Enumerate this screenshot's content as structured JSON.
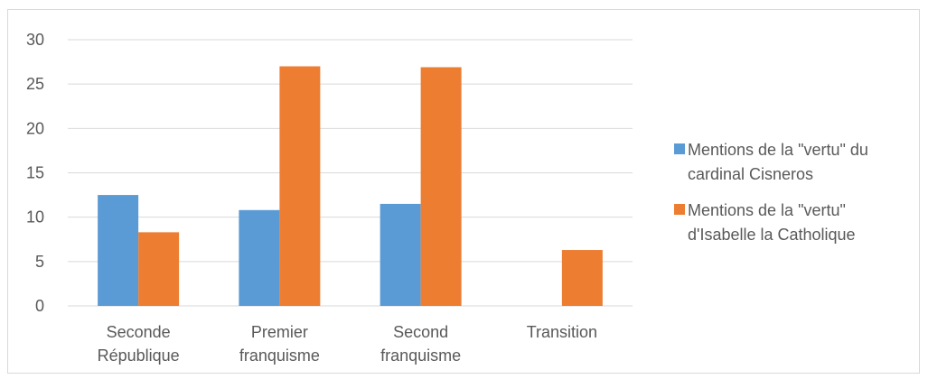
{
  "chart_data": {
    "type": "bar",
    "categories": [
      [
        "Seconde",
        "République"
      ],
      [
        "Premier",
        "franquisme"
      ],
      [
        "Second",
        "franquisme"
      ],
      [
        "Transition"
      ]
    ],
    "series": [
      {
        "name": "Mentions de la \"vertu\" du cardinal Cisneros",
        "legend_lines": [
          "Mentions de la \"vertu\" du",
          "cardinal Cisneros"
        ],
        "color": "#5b9bd5",
        "values": [
          12.5,
          10.8,
          11.5,
          0
        ]
      },
      {
        "name": "Mentions de la \"vertu\" d'Isabelle la Catholique",
        "legend_lines": [
          "Mentions de la \"vertu\"",
          "d'Isabelle la Catholique"
        ],
        "color": "#ed7d31",
        "values": [
          8.3,
          27,
          26.9,
          6.3
        ]
      }
    ],
    "yticks": [
      "0",
      "5",
      "10",
      "15",
      "20",
      "25",
      "30"
    ],
    "ylim": [
      0,
      30
    ],
    "grid": true,
    "legend_position": "right",
    "title": "",
    "xlabel": "",
    "ylabel": ""
  }
}
